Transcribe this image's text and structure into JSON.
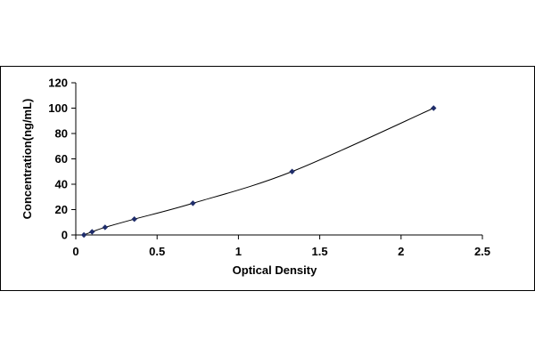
{
  "chart_data": {
    "type": "scatter",
    "title": "",
    "xlabel": "Optical Density",
    "ylabel": "Concentration(ng/mL)",
    "xlim": [
      0,
      2.5
    ],
    "ylim": [
      0,
      120
    ],
    "x_ticks": [
      "0",
      "0.5",
      "1",
      "1.5",
      "2",
      "2.5"
    ],
    "y_ticks": [
      "0",
      "20",
      "40",
      "60",
      "80",
      "100",
      "120"
    ],
    "grid": false,
    "legend": "none",
    "colors": {
      "marker": "#1f2d6b",
      "line": "#000000"
    },
    "series": [
      {
        "x": [
          0.05,
          0.1,
          0.18,
          0.36,
          0.72,
          1.33,
          2.2
        ],
        "y": [
          0,
          2.5,
          6,
          12.5,
          25,
          50,
          100
        ]
      }
    ]
  }
}
